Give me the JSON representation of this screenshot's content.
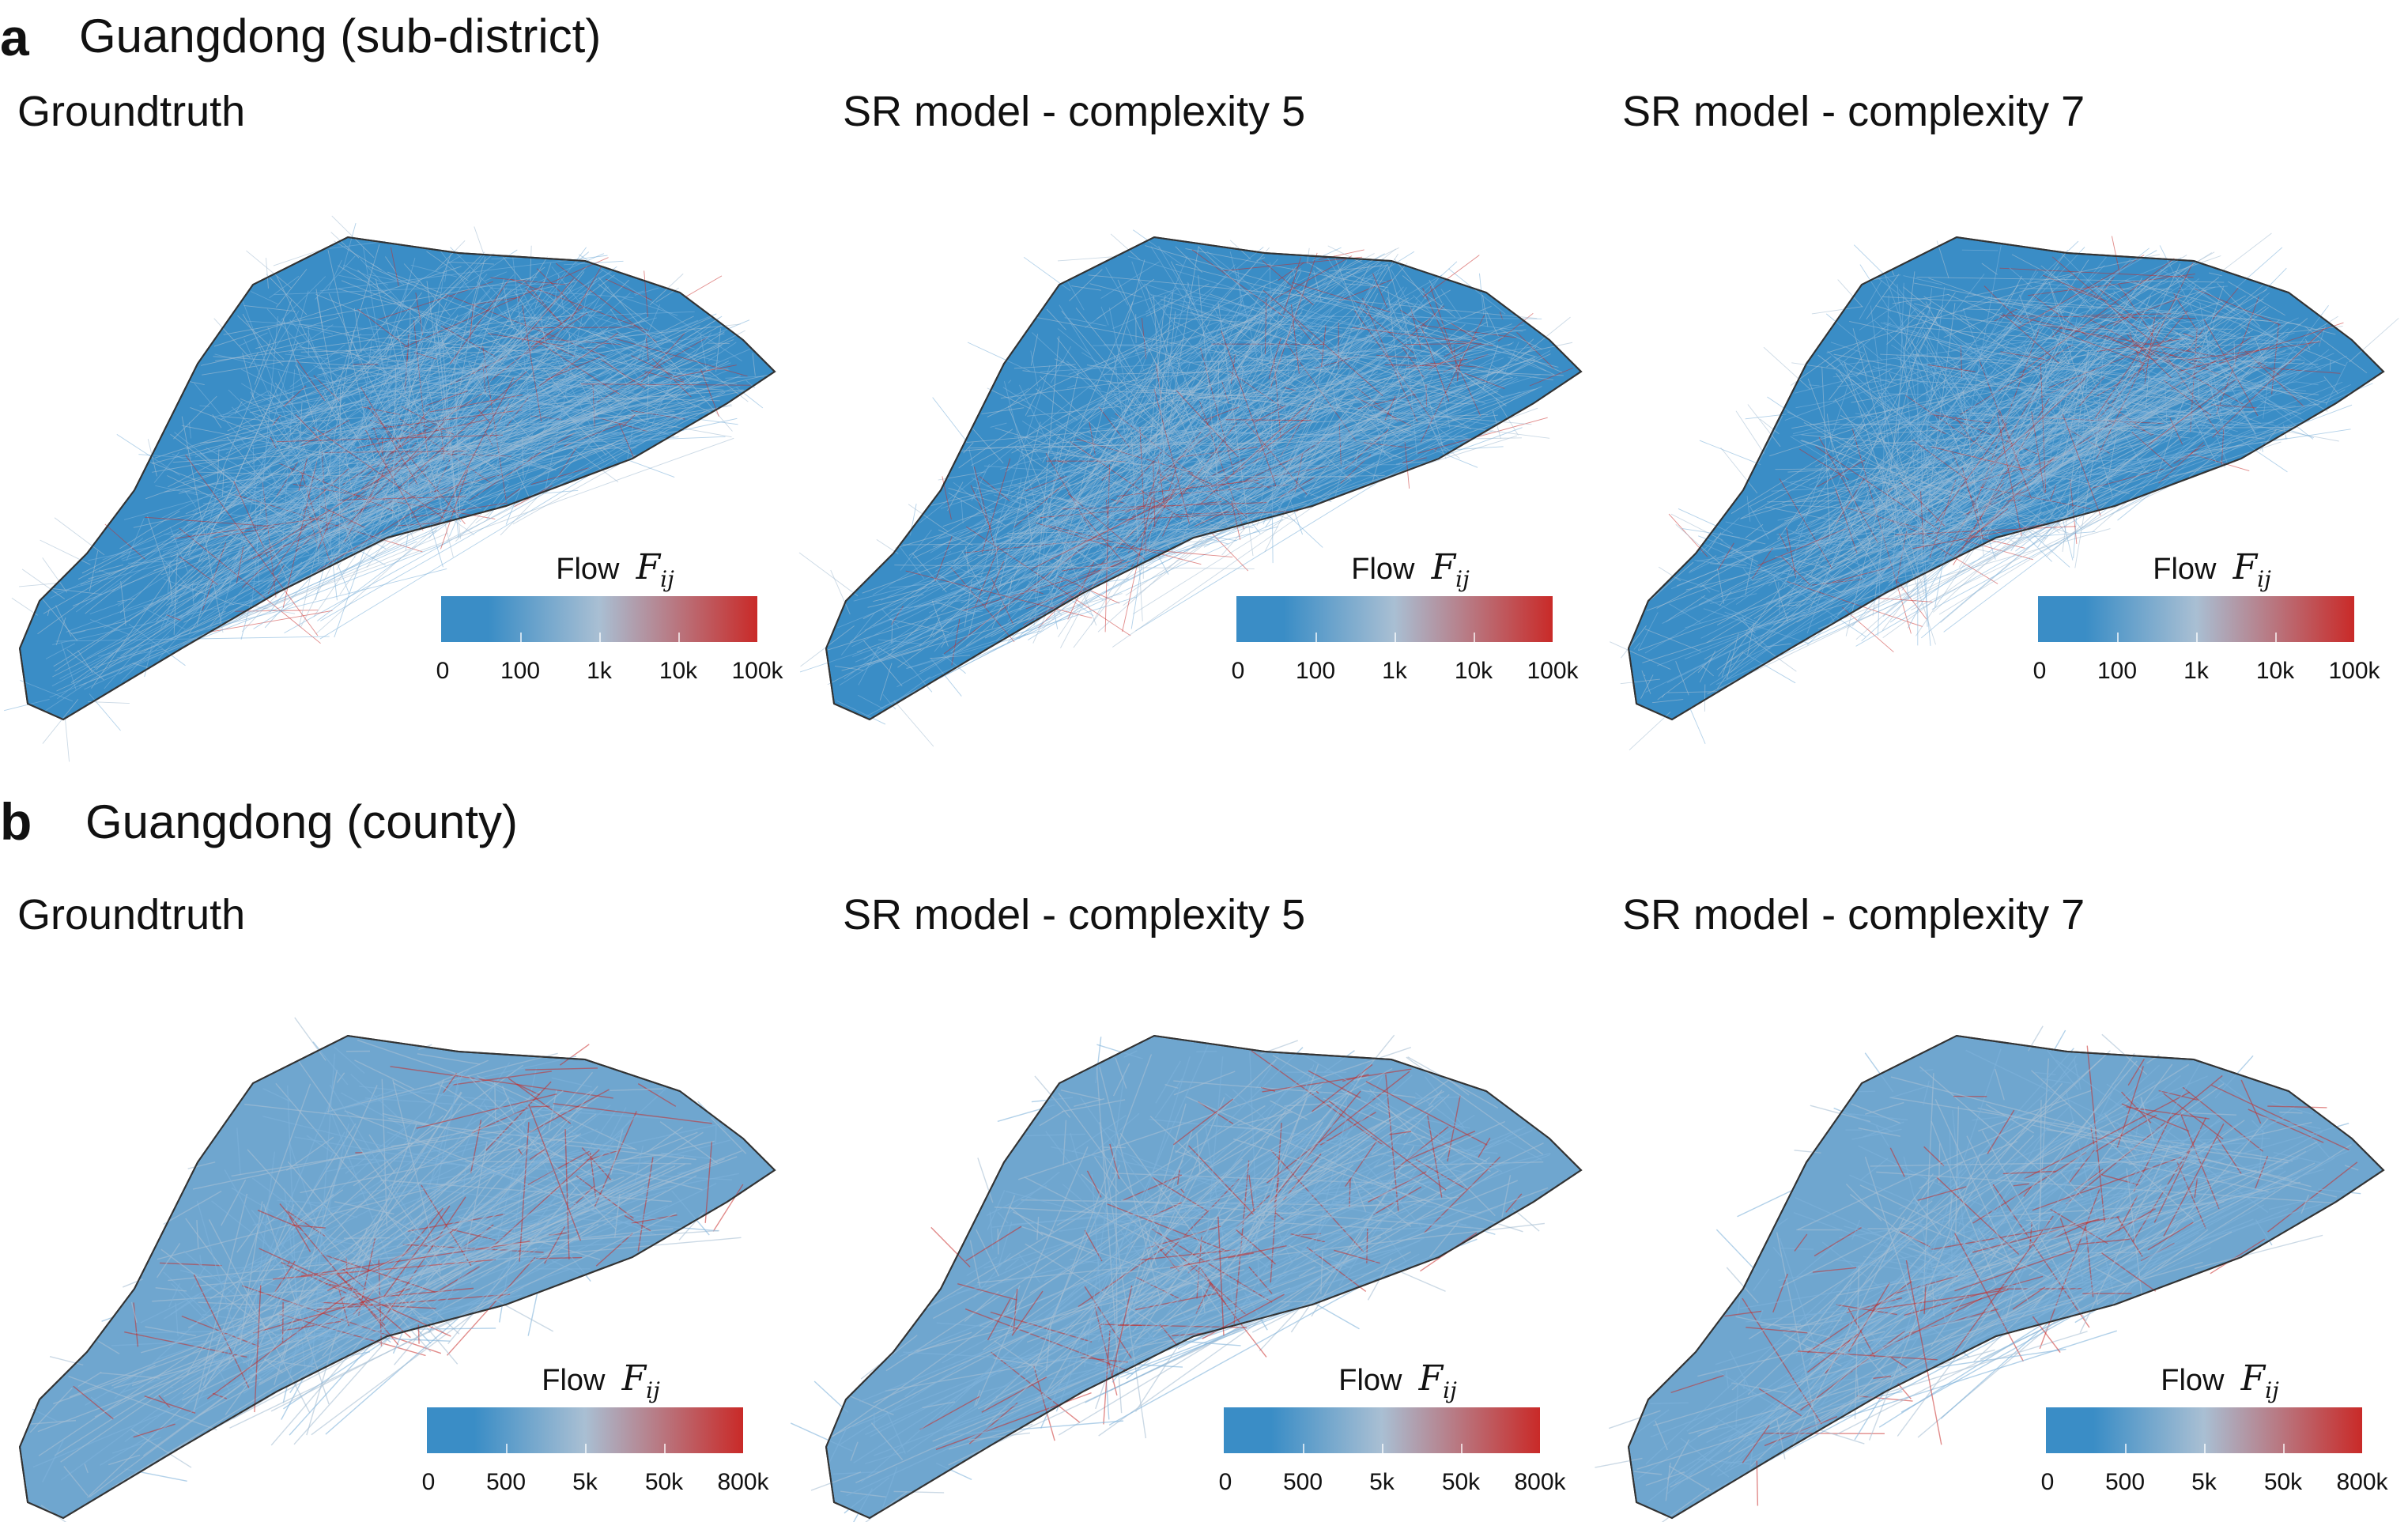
{
  "colors": {
    "low": "#3a8dc6",
    "mid": "#a9bfd3",
    "high": "#c92a28",
    "outline": "#333333",
    "background": "#ffffff"
  },
  "panel_a": {
    "letter": "a",
    "title": "Guangdong (sub-district)",
    "maps": [
      {
        "title": "Groundtruth",
        "legend_label": "Flow",
        "legend_var": "F",
        "legend_sub": "ij",
        "ticks": [
          "0",
          "100",
          "1k",
          "10k",
          "100k"
        ]
      },
      {
        "title": "SR model - complexity 5",
        "legend_label": "Flow",
        "legend_var": "F",
        "legend_sub": "ij",
        "ticks": [
          "0",
          "100",
          "1k",
          "10k",
          "100k"
        ]
      },
      {
        "title": "SR model - complexity 7",
        "legend_label": "Flow",
        "legend_var": "F",
        "legend_sub": "ij",
        "ticks": [
          "0",
          "100",
          "1k",
          "10k",
          "100k"
        ]
      }
    ]
  },
  "panel_b": {
    "letter": "b",
    "title": "Guangdong (county)",
    "maps": [
      {
        "title": "Groundtruth",
        "legend_label": "Flow",
        "legend_var": "F",
        "legend_sub": "ij",
        "ticks": [
          "0",
          "500",
          "5k",
          "50k",
          "800k"
        ]
      },
      {
        "title": "SR model - complexity 5",
        "legend_label": "Flow",
        "legend_var": "F",
        "legend_sub": "ij",
        "ticks": [
          "0",
          "500",
          "5k",
          "50k",
          "800k"
        ]
      },
      {
        "title": "SR model - complexity 7",
        "legend_label": "Flow",
        "legend_var": "F",
        "legend_sub": "ij",
        "ticks": [
          "0",
          "500",
          "5k",
          "50k",
          "800k"
        ]
      }
    ]
  }
}
